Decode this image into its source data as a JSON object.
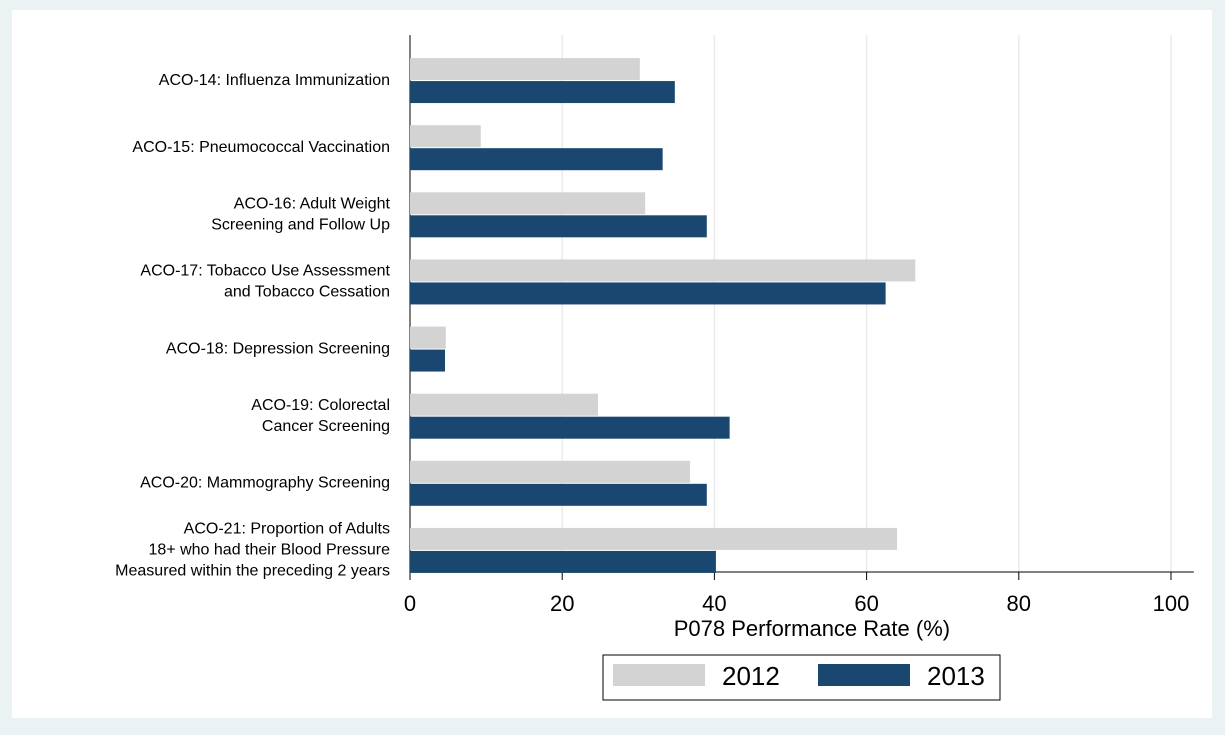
{
  "chart_data": {
    "type": "hbar",
    "categories": [
      [
        "ACO-14: Influenza Immunization"
      ],
      [
        "ACO-15: Pneumococcal Vaccination"
      ],
      [
        "ACO-16: Adult Weight",
        "Screening and Follow Up"
      ],
      [
        "ACO-17: Tobacco Use Assessment",
        "and Tobacco Cessation"
      ],
      [
        "ACO-18: Depression Screening"
      ],
      [
        "ACO-19: Colorectal",
        "Cancer Screening"
      ],
      [
        "ACO-20: Mammography Screening"
      ],
      [
        "ACO-21: Proportion of Adults",
        "18+ who had their Blood Pressure",
        "Measured within the preceding 2 years"
      ]
    ],
    "series": [
      {
        "name": "2012",
        "color": "#d3d3d3",
        "values": [
          30.2,
          9.3,
          30.9,
          66.4,
          4.7,
          24.7,
          36.8,
          64.0
        ]
      },
      {
        "name": "2013",
        "color": "#1a476f",
        "values": [
          34.8,
          33.2,
          39.0,
          62.5,
          4.6,
          42.0,
          39.0,
          40.2
        ]
      }
    ],
    "xlabel": "P078 Performance Rate (%)",
    "xlim": [
      0,
      103
    ],
    "xticks": [
      0,
      20,
      40,
      60,
      80,
      100
    ],
    "grid": true
  }
}
